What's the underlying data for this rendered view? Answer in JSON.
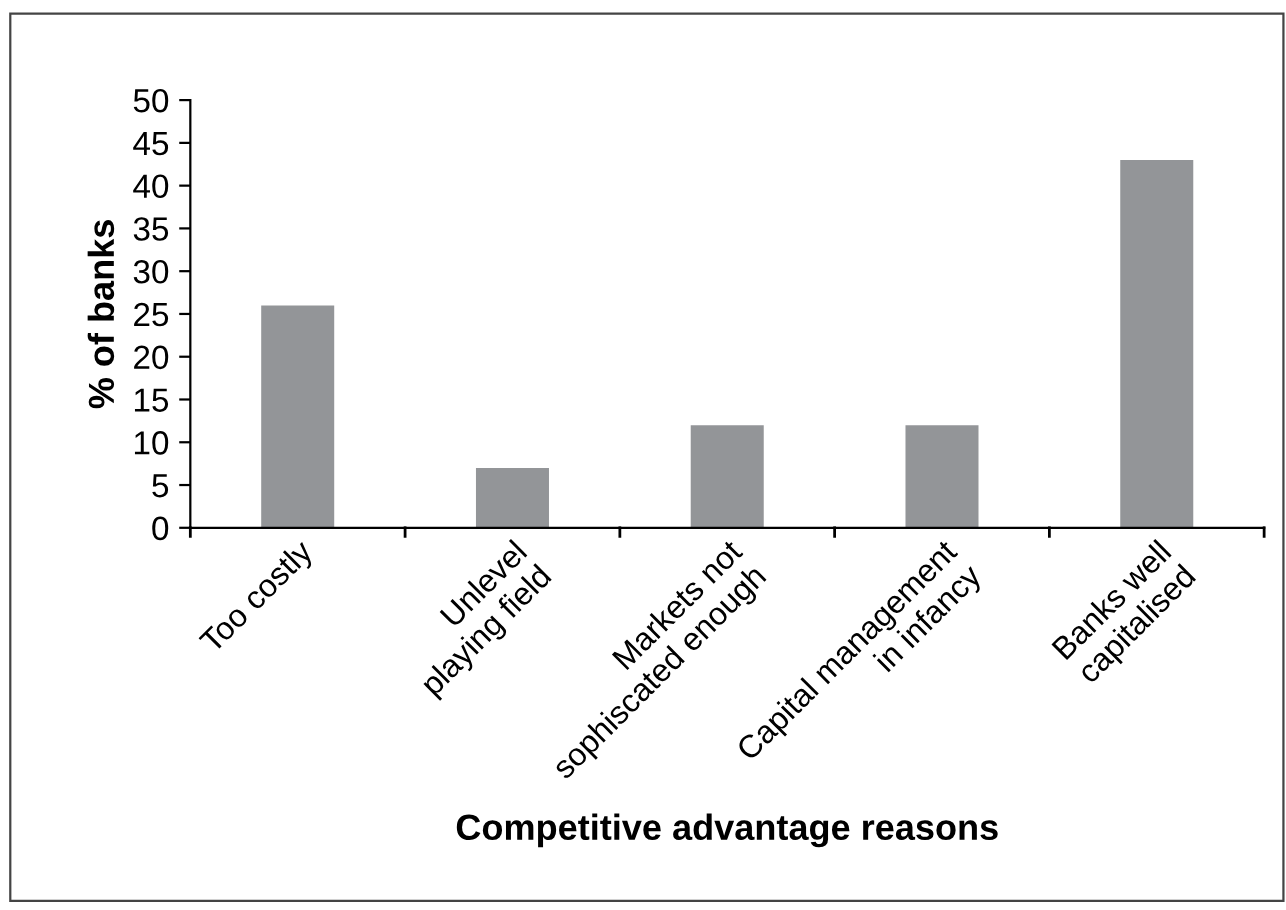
{
  "chart_data": {
    "type": "bar",
    "xlabel": "Competitive advantage reasons",
    "ylabel": "% of banks",
    "categories": [
      "Too costly",
      "Unlevel\nplaying field",
      "Markets not\nsophiscated enough",
      "Capital management\nin infancy",
      "Banks well\ncapitalised"
    ],
    "values": [
      26,
      7,
      12,
      12,
      43
    ],
    "color": "#939598",
    "ylim": [
      0,
      50
    ],
    "yticks": [
      0,
      5,
      10,
      15,
      20,
      25,
      30,
      35,
      40,
      45,
      50
    ],
    "grid": false,
    "legend": false
  }
}
